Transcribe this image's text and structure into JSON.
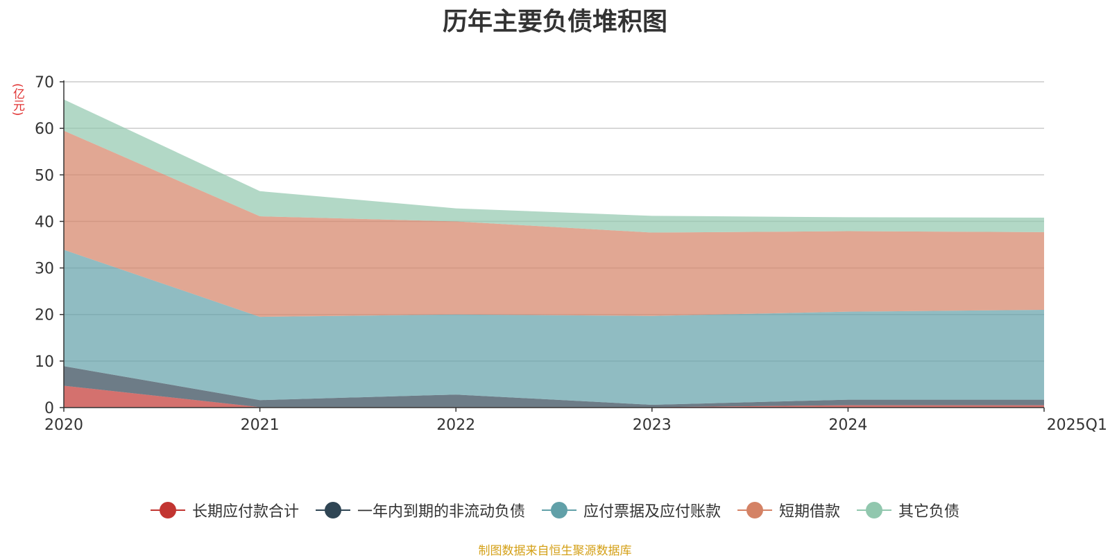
{
  "chart_data": {
    "type": "area",
    "title": "历年主要负债堆积图",
    "ylabel": "(亿元)",
    "ylim": [
      0,
      70
    ],
    "y_ticks": [
      0,
      10,
      20,
      30,
      40,
      50,
      60,
      70
    ],
    "grid": true,
    "stacked": true,
    "legend_position": "bottom",
    "categories": [
      "2020",
      "2021",
      "2022",
      "2023",
      "2024",
      "2025Q1"
    ],
    "series": [
      {
        "name": "长期应付款合计",
        "color": "#c23531",
        "values": [
          4.7,
          0.1,
          0.1,
          0.1,
          0.5,
          0.5
        ]
      },
      {
        "name": "一年内到期的非流动负债",
        "color": "#2f4554",
        "values": [
          4.2,
          1.5,
          2.7,
          0.5,
          1.2,
          1.2
        ]
      },
      {
        "name": "应付票据及应付账款",
        "color": "#61a0a8",
        "values": [
          25.0,
          17.9,
          17.2,
          19.1,
          18.9,
          19.3
        ]
      },
      {
        "name": "短期借款",
        "color": "#d48265",
        "values": [
          25.6,
          21.6,
          20.0,
          17.9,
          17.3,
          16.7
        ]
      },
      {
        "name": "其它负债",
        "color": "#91c7ae",
        "values": [
          6.7,
          5.4,
          2.8,
          3.6,
          3.0,
          3.1
        ]
      }
    ]
  },
  "footer": {
    "source_note": "制图数据来自恒生聚源数据库"
  }
}
